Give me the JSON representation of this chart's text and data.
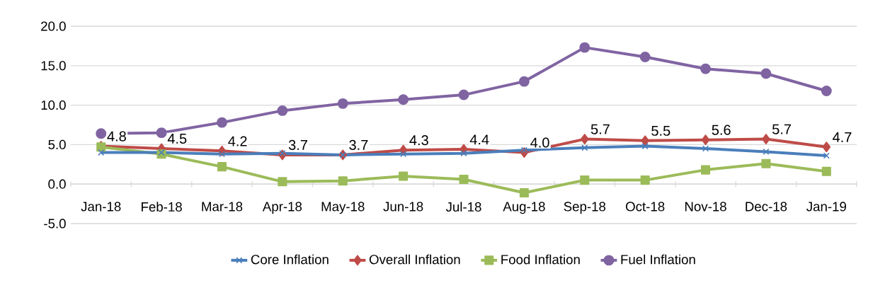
{
  "chart_data": {
    "type": "line",
    "categories": [
      "Jan-18",
      "Feb-18",
      "Mar-18",
      "Apr-18",
      "May-18",
      "Jun-18",
      "Jul-18",
      "Aug-18",
      "Sep-18",
      "Oct-18",
      "Nov-18",
      "Dec-18",
      "Jan-19"
    ],
    "series": [
      {
        "name": "Core Inflation",
        "color": "#4a7ebb",
        "marker": "cross",
        "values": [
          4.0,
          4.0,
          3.8,
          3.9,
          3.7,
          3.8,
          3.9,
          4.3,
          4.6,
          4.8,
          4.5,
          4.1,
          3.6
        ]
      },
      {
        "name": "Overall Inflation",
        "color": "#be4b48",
        "marker": "diamond",
        "values": [
          4.8,
          4.5,
          4.2,
          3.7,
          3.7,
          4.3,
          4.4,
          4.0,
          5.7,
          5.5,
          5.6,
          5.7,
          4.7
        ],
        "value_labels": [
          "4.8",
          "4.5",
          "4.2",
          "3.7",
          "3.7",
          "4.3",
          "4.4",
          "4.0",
          "5.7",
          "5.5",
          "5.6",
          "5.7",
          "4.7"
        ]
      },
      {
        "name": "Food Inflation",
        "color": "#9bbb59",
        "marker": "square",
        "values": [
          4.7,
          3.8,
          2.2,
          0.3,
          0.4,
          1.0,
          0.6,
          -1.1,
          0.5,
          0.5,
          1.8,
          2.6,
          1.6
        ]
      },
      {
        "name": "Fuel Inflation",
        "color": "#8064a2",
        "marker": "circle",
        "values": [
          6.4,
          6.5,
          7.8,
          9.3,
          10.2,
          10.7,
          11.3,
          13.0,
          17.3,
          16.1,
          14.6,
          14.0,
          11.8
        ]
      }
    ],
    "ylim": [
      -5,
      20
    ],
    "yticks": [
      {
        "value": -5,
        "label": "-5.0"
      },
      {
        "value": 0,
        "label": "0.0"
      },
      {
        "value": 5,
        "label": "5.0"
      },
      {
        "value": 10,
        "label": "10.0"
      },
      {
        "value": 15,
        "label": "15.0"
      },
      {
        "value": 20,
        "label": "20.0"
      }
    ],
    "grid": "y",
    "legend": "bottom",
    "line_style": "solid"
  }
}
